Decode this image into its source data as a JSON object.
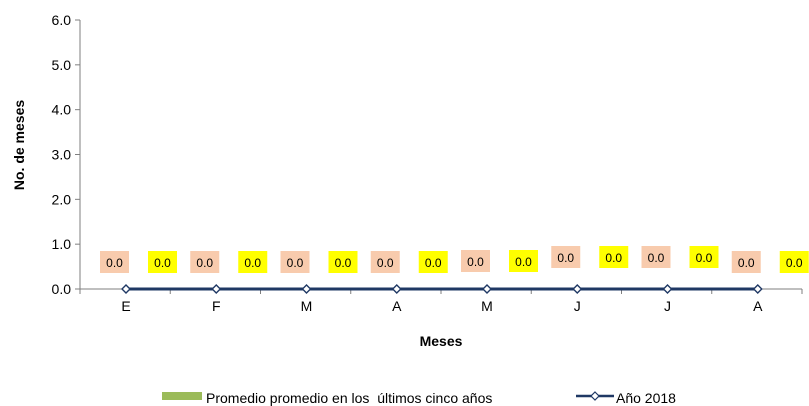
{
  "chart_data": {
    "type": "line",
    "title": "",
    "xlabel": "Meses",
    "ylabel": "No. de meses",
    "ylim": [
      0,
      6
    ],
    "yticks": [
      "0.0",
      "1.0",
      "2.0",
      "3.0",
      "4.0",
      "5.0",
      "6.0"
    ],
    "categories": [
      "E",
      "F",
      "M",
      "A",
      "M",
      "J",
      "J",
      "A"
    ],
    "series": [
      {
        "name": "Promedio promedio en los  últimos cinco años",
        "kind": "bar",
        "color": "#9bbb59",
        "label_bg": "#f8cbad",
        "values": [
          0.0,
          0.0,
          0.0,
          0.0,
          0.0,
          0.0,
          0.0,
          0.0
        ],
        "labels": [
          "0.0",
          "0.0",
          "0.0",
          "0.0",
          "0.0",
          "0.0",
          "0.0",
          "0.0"
        ]
      },
      {
        "name": "Año 2018",
        "kind": "line",
        "color": "#1f3864",
        "label_bg": "#ffff00",
        "values": [
          0.0,
          0.0,
          0.0,
          0.0,
          0.0,
          0.0,
          0.0,
          0.0
        ],
        "labels": [
          "0.0",
          "0.0",
          "0.0",
          "0.0",
          "0.0",
          "0.0",
          "0.0",
          "0.0"
        ]
      }
    ],
    "grid": false,
    "legend_position": "bottom"
  }
}
